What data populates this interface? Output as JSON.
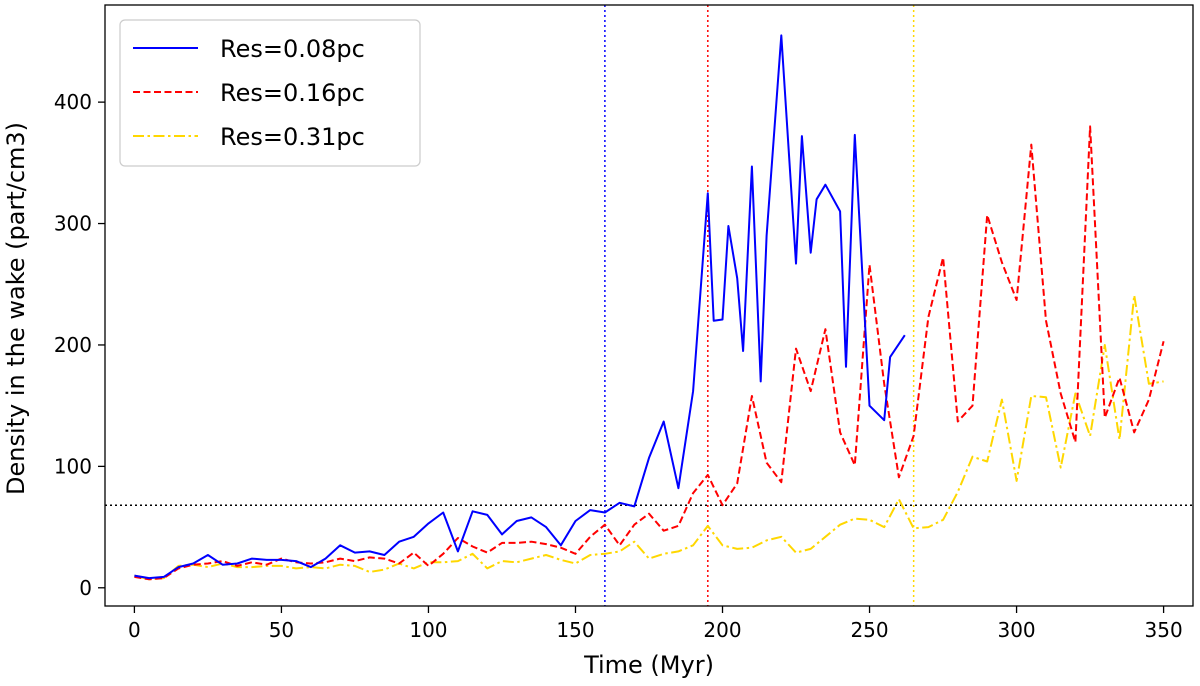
{
  "chart_data": {
    "type": "line",
    "title": "",
    "xlabel": "Time (Myr)",
    "ylabel": "Density in the wake (part/cm3)",
    "xlim": [
      -10,
      360
    ],
    "ylim": [
      -15,
      480
    ],
    "xticks": [
      0,
      50,
      100,
      150,
      200,
      250,
      300,
      350
    ],
    "yticks": [
      0,
      100,
      200,
      300,
      400
    ],
    "grid": false,
    "legend_position": "top-left",
    "series": [
      {
        "name": "Res=0.08pc",
        "color": "#0000ff",
        "linestyle": "solid",
        "x": [
          0,
          5,
          10,
          15,
          20,
          25,
          30,
          35,
          40,
          45,
          50,
          55,
          60,
          65,
          70,
          75,
          80,
          85,
          90,
          95,
          100,
          105,
          110,
          115,
          120,
          125,
          130,
          135,
          140,
          145,
          150,
          155,
          160,
          165,
          170,
          175,
          180,
          185,
          190,
          195,
          197,
          200,
          202,
          205,
          207,
          210,
          213,
          215,
          220,
          225,
          227,
          230,
          232,
          235,
          240,
          242,
          245,
          250,
          255,
          257,
          262
        ],
        "y": [
          10,
          8,
          9,
          17,
          20,
          27,
          19,
          20,
          24,
          23,
          23,
          22,
          17,
          24,
          35,
          29,
          30,
          27,
          38,
          42,
          53,
          62,
          30,
          63,
          60,
          44,
          55,
          58,
          50,
          35,
          55,
          64,
          62,
          70,
          67,
          107,
          137,
          82,
          162,
          325,
          220,
          221,
          298,
          255,
          195,
          347,
          170,
          290,
          455,
          267,
          372,
          276,
          320,
          332,
          310,
          182,
          373,
          150,
          138,
          190,
          208
        ]
      },
      {
        "name": "Res=0.16pc",
        "color": "#ff0000",
        "linestyle": "dashed",
        "x": [
          0,
          5,
          10,
          15,
          20,
          25,
          30,
          35,
          40,
          45,
          50,
          55,
          60,
          65,
          70,
          75,
          80,
          85,
          90,
          95,
          100,
          105,
          110,
          115,
          120,
          125,
          130,
          135,
          140,
          145,
          150,
          155,
          160,
          165,
          170,
          175,
          180,
          185,
          190,
          195,
          200,
          205,
          210,
          215,
          220,
          225,
          230,
          235,
          240,
          245,
          250,
          255,
          260,
          265,
          270,
          275,
          280,
          285,
          290,
          295,
          300,
          305,
          310,
          315,
          320,
          325,
          330,
          335,
          340,
          345,
          350
        ],
        "y": [
          9,
          7,
          8,
          16,
          19,
          20,
          22,
          18,
          21,
          19,
          24,
          21,
          20,
          21,
          24,
          22,
          25,
          24,
          20,
          29,
          18,
          28,
          41,
          34,
          29,
          37,
          37,
          38,
          36,
          33,
          28,
          42,
          52,
          35,
          52,
          61,
          47,
          51,
          78,
          93,
          68,
          86,
          158,
          103,
          87,
          197,
          162,
          213,
          128,
          101,
          266,
          168,
          91,
          125,
          223,
          272,
          137,
          150,
          307,
          268,
          237,
          365,
          220,
          160,
          120,
          380,
          140,
          173,
          128,
          155,
          203
        ]
      },
      {
        "name": "Res=0.31pc",
        "color": "#ffd700",
        "linestyle": "dashdot",
        "x": [
          0,
          5,
          10,
          15,
          20,
          25,
          30,
          35,
          40,
          45,
          50,
          55,
          60,
          65,
          70,
          75,
          80,
          85,
          90,
          95,
          100,
          105,
          110,
          115,
          120,
          125,
          130,
          135,
          140,
          145,
          150,
          155,
          160,
          165,
          170,
          175,
          180,
          185,
          190,
          195,
          200,
          205,
          210,
          215,
          220,
          225,
          230,
          235,
          240,
          245,
          250,
          255,
          260,
          265,
          270,
          275,
          280,
          285,
          290,
          295,
          300,
          305,
          310,
          315,
          320,
          325,
          330,
          335,
          340,
          345,
          350
        ],
        "y": [
          10,
          7,
          8,
          18,
          19,
          17,
          20,
          17,
          17,
          18,
          18,
          16,
          17,
          16,
          19,
          18,
          13,
          15,
          20,
          16,
          21,
          21,
          22,
          28,
          16,
          22,
          21,
          24,
          27,
          23,
          20,
          27,
          28,
          30,
          38,
          24,
          28,
          30,
          35,
          51,
          35,
          32,
          33,
          39,
          42,
          29,
          32,
          42,
          52,
          57,
          56,
          50,
          73,
          49,
          50,
          56,
          79,
          108,
          104,
          155,
          88,
          158,
          157,
          99,
          160,
          125,
          200,
          122,
          241,
          168,
          170
        ]
      }
    ],
    "reference_lines": [
      {
        "orientation": "horizontal",
        "value": 68,
        "color": "#000000",
        "linestyle": "dotted"
      },
      {
        "orientation": "vertical",
        "value": 160,
        "color": "#0000ff",
        "linestyle": "dotted"
      },
      {
        "orientation": "vertical",
        "value": 195,
        "color": "#ff0000",
        "linestyle": "dotted"
      },
      {
        "orientation": "vertical",
        "value": 265,
        "color": "#ffd700",
        "linestyle": "dotted"
      }
    ]
  }
}
